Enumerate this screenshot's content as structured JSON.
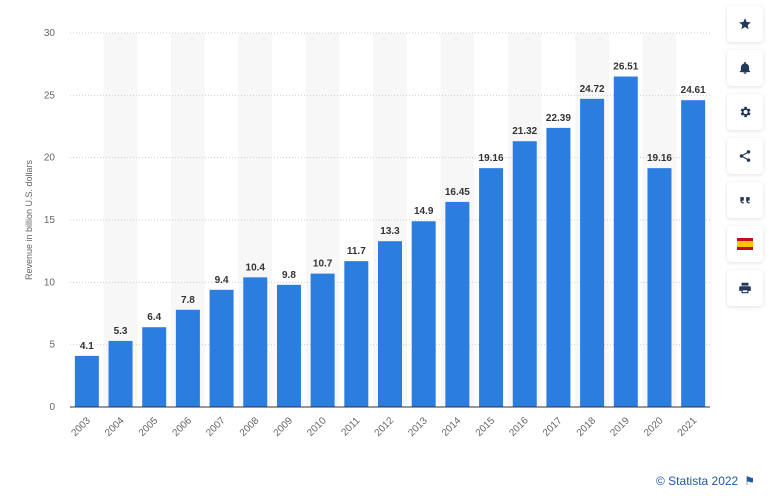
{
  "chart_data": {
    "type": "bar",
    "categories": [
      "2003",
      "2004",
      "2005",
      "2006",
      "2007",
      "2008",
      "2009",
      "2010",
      "2011",
      "2012",
      "2013",
      "2014",
      "2015",
      "2016",
      "2017",
      "2018",
      "2019",
      "2020",
      "2021"
    ],
    "values": [
      4.1,
      5.3,
      6.4,
      7.8,
      9.4,
      10.4,
      9.8,
      10.7,
      11.7,
      13.3,
      14.9,
      16.45,
      19.16,
      21.32,
      22.39,
      24.72,
      26.51,
      19.16,
      24.61
    ],
    "value_labels": [
      "4.1",
      "5.3",
      "6.4",
      "7.8",
      "9.4",
      "10.4",
      "9.8",
      "10.7",
      "11.7",
      "13.3",
      "14.9",
      "16.45",
      "19.16",
      "21.32",
      "22.39",
      "24.72",
      "26.51",
      "19.16",
      "24.61"
    ],
    "ylabel": "Revenue in billion U.S. dollars",
    "ylim": [
      0,
      30
    ],
    "yticks": [
      0,
      5,
      10,
      15,
      20,
      25,
      30
    ],
    "bar_color": "#2b7de0",
    "grid": true
  },
  "sidebar": {
    "buttons": [
      {
        "icon": "star-icon"
      },
      {
        "icon": "bell-icon"
      },
      {
        "icon": "gear-icon"
      },
      {
        "icon": "share-icon"
      },
      {
        "icon": "quote-icon"
      },
      {
        "icon": "flag-spain-icon"
      },
      {
        "icon": "print-icon"
      }
    ]
  },
  "footer": {
    "credit": "© Statista 2022"
  }
}
